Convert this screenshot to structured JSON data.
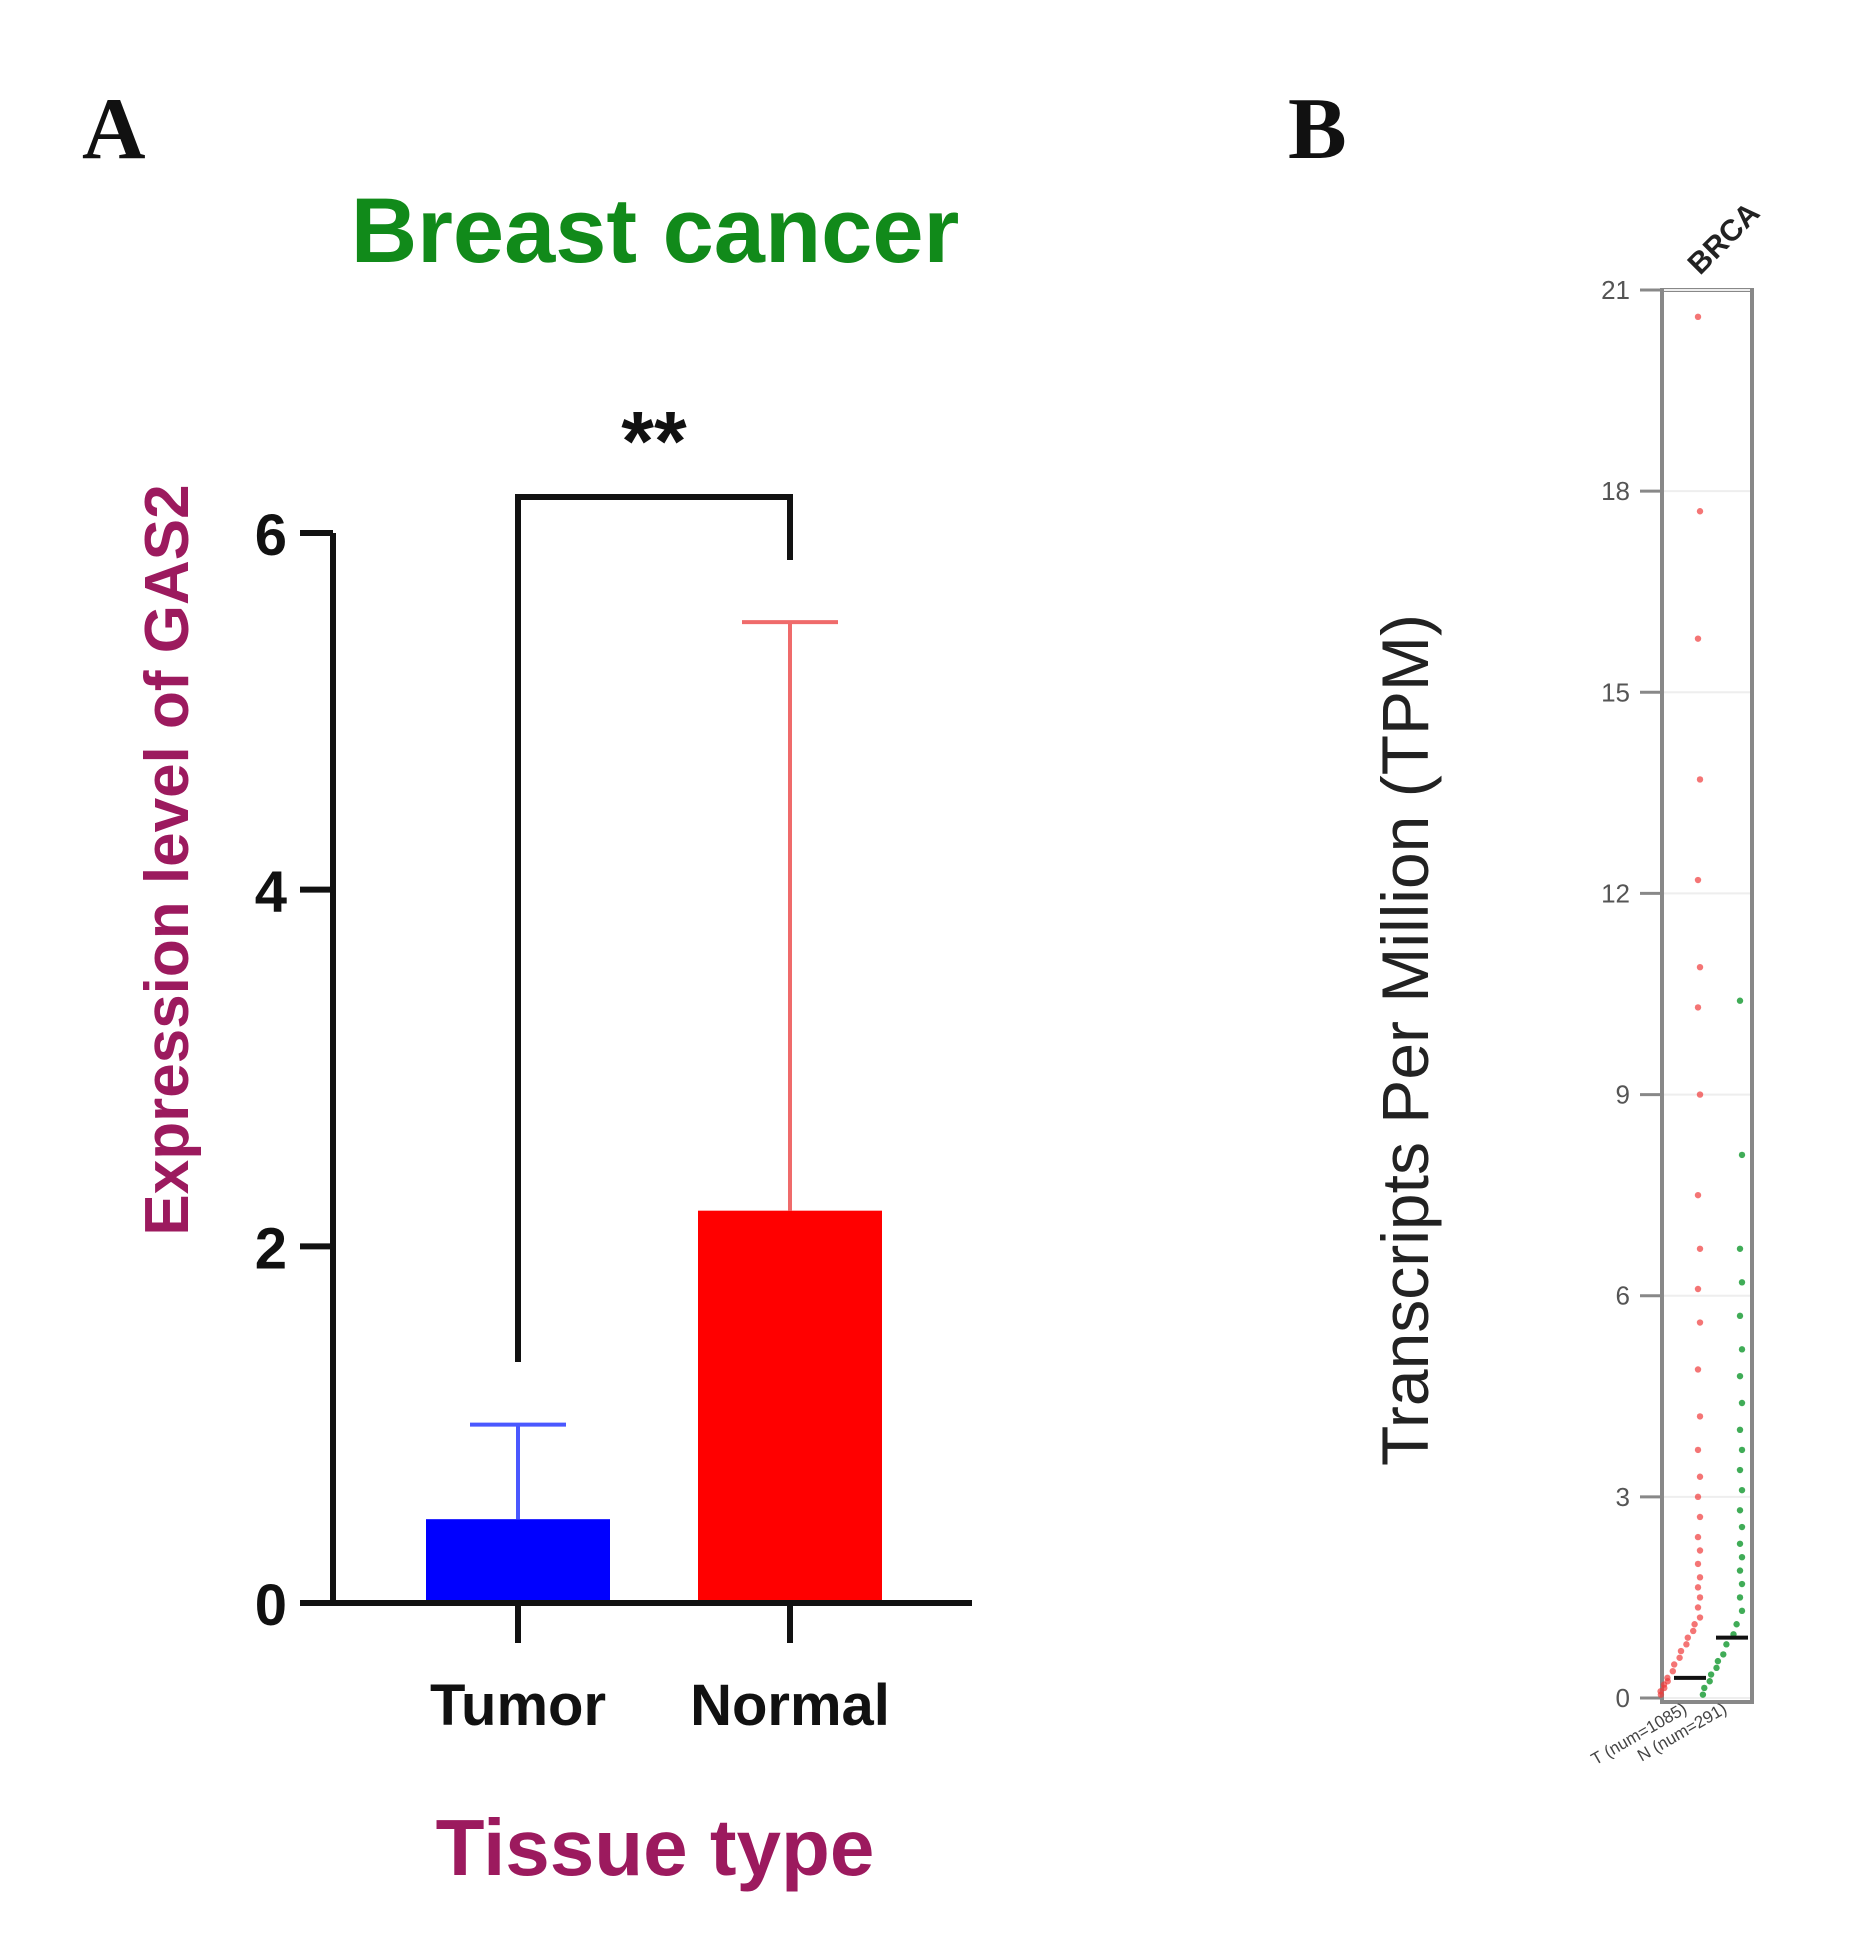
{
  "panels": {
    "a_letter": "A",
    "b_letter": "B"
  },
  "colors": {
    "title_a": "#118a1a",
    "axis_title_a": "#9c1a5e",
    "tumor": "#0000ff",
    "normal": "#ff0000",
    "tumor_err": "#4a58ff",
    "normal_err": "#ef6b6b",
    "tumor_points_b": "#ef3b3b",
    "normal_points_b": "#1f9d3a"
  },
  "chart_data": [
    {
      "type": "bar",
      "title": "Breast cancer",
      "xlabel": "Tissue type",
      "ylabel": "Expression level of GAS2",
      "categories": [
        "Tumor",
        "Normal"
      ],
      "values": [
        0.47,
        2.2
      ],
      "error_upper": [
        1.0,
        5.5
      ],
      "ylim": [
        0,
        6
      ],
      "yticks": [
        "0",
        "2",
        "4",
        "6"
      ],
      "significance": "**",
      "grid": false
    },
    {
      "type": "scatter",
      "header": "BRCA",
      "ylabel": "Transcripts Per Million (TPM)",
      "categories": [
        "T (num=1085)",
        "N (num=291)"
      ],
      "yticks": [
        "0",
        "3",
        "6",
        "9",
        "12",
        "15",
        "18",
        "21"
      ],
      "ylim": [
        0,
        21
      ],
      "medians": [
        0.3,
        0.9
      ],
      "series": [
        {
          "values": [
            0.05,
            0.1,
            0.15,
            0.2,
            0.25,
            0.3,
            0.4,
            0.5,
            0.6,
            0.7,
            0.8,
            0.9,
            1.0,
            1.1,
            1.2,
            1.35,
            1.5,
            1.65,
            1.8,
            2.0,
            2.2,
            2.4,
            2.7,
            3.0,
            3.3,
            3.7,
            4.2,
            4.9,
            5.6,
            6.1,
            6.7,
            7.5,
            9.0,
            10.3,
            10.9,
            12.2,
            13.7,
            15.8,
            17.7,
            20.6
          ]
        },
        {
          "values": [
            0.05,
            0.15,
            0.25,
            0.35,
            0.45,
            0.55,
            0.65,
            0.8,
            0.95,
            1.1,
            1.3,
            1.5,
            1.7,
            1.9,
            2.1,
            2.3,
            2.55,
            2.8,
            3.1,
            3.4,
            3.7,
            4.0,
            4.4,
            4.8,
            5.2,
            5.7,
            6.2,
            6.7,
            8.1,
            10.4
          ]
        }
      ]
    }
  ]
}
